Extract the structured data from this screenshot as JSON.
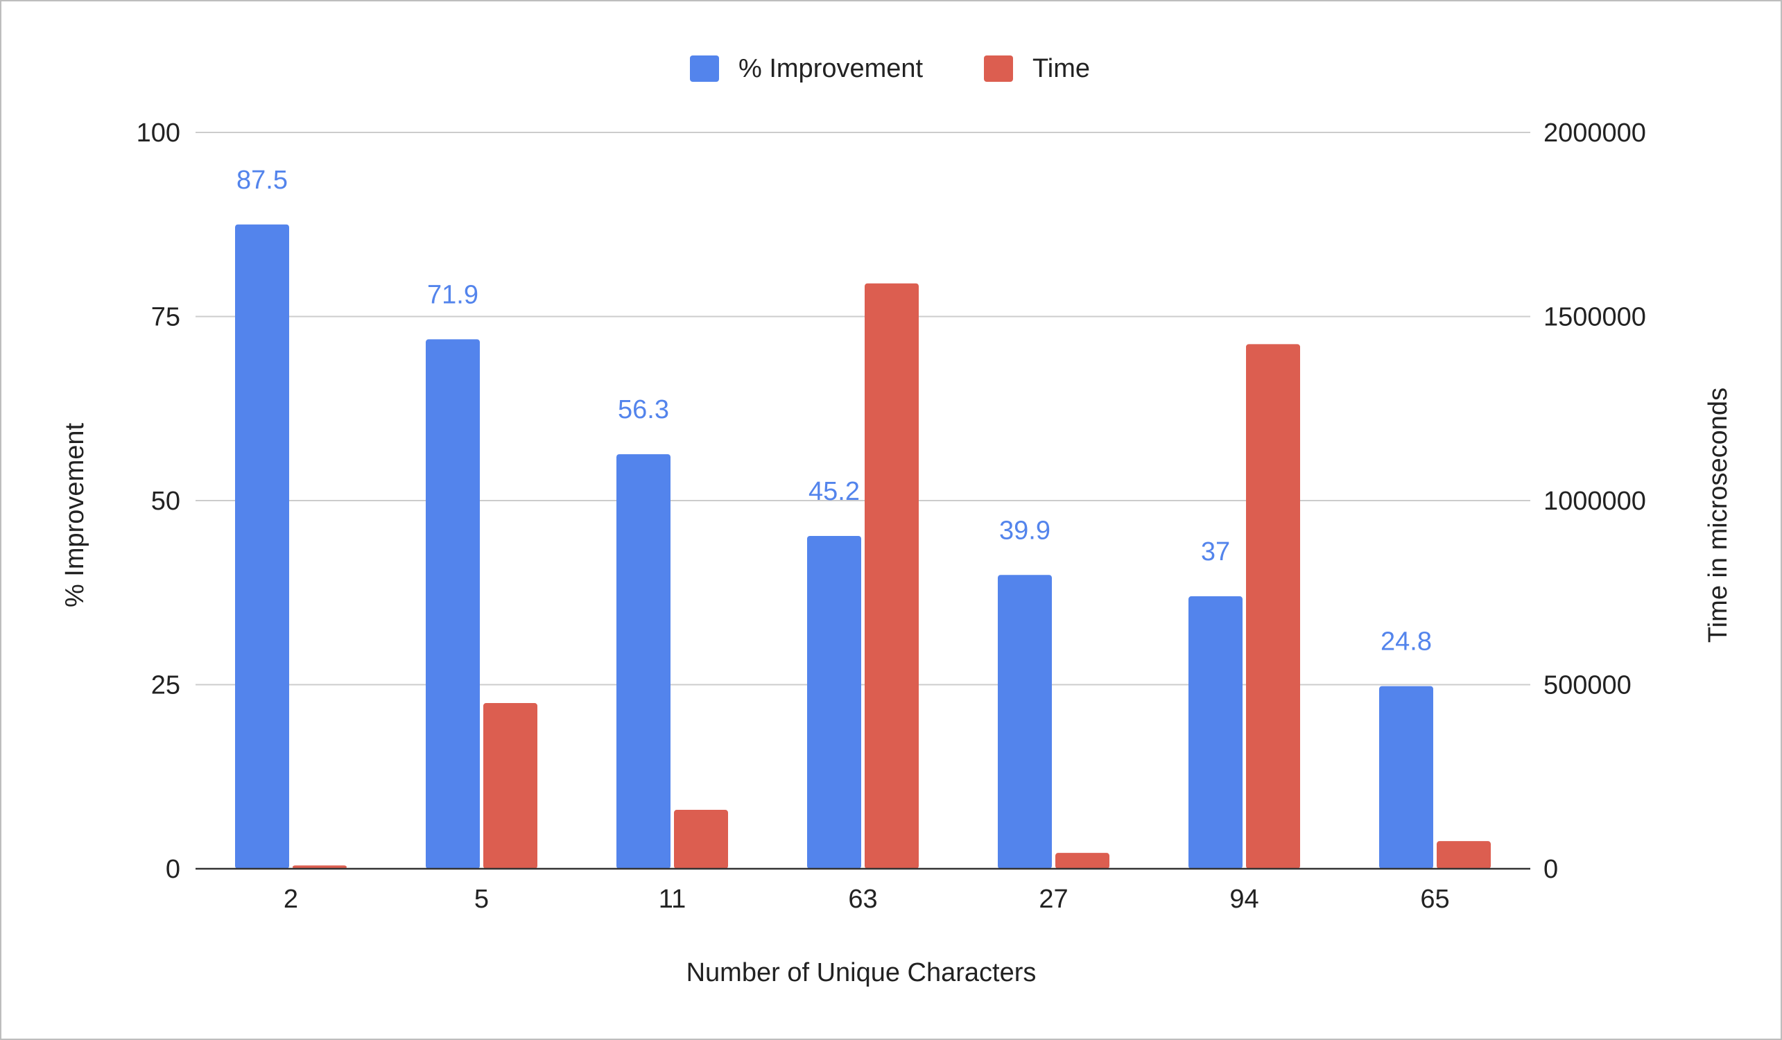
{
  "chart_data": {
    "type": "bar",
    "title": "",
    "xlabel": "Number of Unique Characters",
    "ylabel_left": "% Improvement",
    "ylabel_right": "Time in microseconds",
    "categories": [
      "2",
      "5",
      "11",
      "63",
      "27",
      "94",
      "65"
    ],
    "series": [
      {
        "name": "% Improvement",
        "axis": "left",
        "color": "#5384ec",
        "label_color": "#5384ec",
        "values": [
          87.5,
          71.9,
          56.3,
          45.2,
          39.9,
          37,
          24.8
        ],
        "data_labels": [
          "87.5",
          "71.9",
          "56.3",
          "45.2",
          "39.9",
          "37",
          "24.8"
        ]
      },
      {
        "name": "Time",
        "axis": "right",
        "color": "#dc5e50",
        "values": [
          9000,
          450000,
          160000,
          1590000,
          43000,
          1425000,
          75000
        ]
      }
    ],
    "ylim_left": [
      0,
      100
    ],
    "yticks_left": [
      "0",
      "25",
      "50",
      "75",
      "100"
    ],
    "ylim_right": [
      0,
      2000000
    ],
    "yticks_right": [
      "0",
      "500000",
      "1000000",
      "1500000",
      "2000000"
    ],
    "grid": true,
    "legend_position": "top-center"
  }
}
